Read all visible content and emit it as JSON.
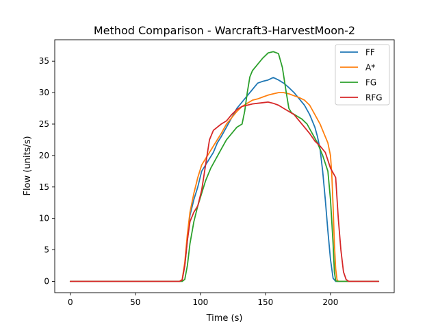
{
  "chart_data": {
    "type": "line",
    "title": "Method Comparison - Warcraft3-HarvestMoon-2",
    "xlabel": "Time (s)",
    "ylabel": "Flow (units/s)",
    "xlim": [
      -12,
      249
    ],
    "ylim": [
      -1.8,
      38.4
    ],
    "xticks": [
      0,
      50,
      100,
      150,
      200
    ],
    "yticks": [
      0,
      5,
      10,
      15,
      20,
      25,
      30,
      35
    ],
    "grid": false,
    "legend_position": "top-right",
    "series": [
      {
        "name": "FF",
        "color": "#1f77b4",
        "x": [
          0,
          84,
          86,
          88,
          90,
          92,
          95,
          98,
          101,
          104,
          107,
          110,
          113,
          116,
          120,
          124,
          128,
          132,
          136,
          140,
          144,
          148,
          152,
          156,
          160,
          164,
          168,
          172,
          176,
          180,
          184,
          188,
          190,
          192,
          194,
          196,
          198,
          200,
          202,
          204,
          206,
          210,
          220,
          237
        ],
        "y": [
          0,
          0,
          0.2,
          2.5,
          6.5,
          10.5,
          13,
          15,
          17.5,
          18.5,
          19.5,
          20.5,
          22,
          23,
          24.5,
          26,
          27.5,
          28.5,
          29.5,
          30.5,
          31.5,
          31.8,
          32,
          32.4,
          32,
          31.5,
          30.8,
          30,
          29,
          28,
          26.5,
          24.5,
          23,
          21,
          17.5,
          13,
          8,
          3.5,
          0.5,
          0,
          0,
          0,
          0,
          0
        ]
      },
      {
        "name": "A*",
        "color": "#ff7f0e",
        "x": [
          0,
          84,
          86,
          88,
          90,
          92,
          95,
          98,
          101,
          104,
          107,
          110,
          113,
          116,
          120,
          124,
          128,
          132,
          136,
          140,
          144,
          148,
          152,
          156,
          160,
          164,
          168,
          172,
          176,
          180,
          184,
          188,
          192,
          195,
          198,
          200,
          201,
          202,
          203,
          204,
          205,
          206,
          210,
          237
        ],
        "y": [
          0,
          0,
          0.3,
          3,
          7.5,
          11,
          14,
          16.5,
          18.5,
          19.5,
          20.5,
          21.5,
          22.5,
          23.5,
          25,
          26,
          27,
          27.8,
          28.3,
          28.8,
          29,
          29.3,
          29.6,
          29.8,
          30,
          30,
          29.8,
          29.5,
          29.2,
          28.8,
          28,
          26.5,
          25,
          23.5,
          22,
          20,
          17,
          12,
          6,
          2,
          0.3,
          0,
          0,
          0
        ]
      },
      {
        "name": "FG",
        "color": "#2ca02c",
        "x": [
          0,
          86,
          88,
          90,
          92,
          95,
          98,
          101,
          104,
          108,
          112,
          116,
          120,
          124,
          128,
          132,
          134,
          136,
          138,
          140,
          144,
          148,
          152,
          156,
          160,
          163,
          166,
          168,
          170,
          174,
          178,
          182,
          186,
          190,
          194,
          198,
          200,
          202,
          203,
          204,
          205,
          206,
          210,
          237
        ],
        "y": [
          0,
          0,
          0.3,
          2.5,
          6,
          9.5,
          12,
          14,
          16,
          18,
          19.5,
          21,
          22.5,
          23.5,
          24.5,
          25,
          27,
          30,
          32.5,
          33.5,
          34.5,
          35.5,
          36.3,
          36.5,
          36.2,
          34,
          30,
          27.5,
          26.8,
          26.3,
          25.8,
          25,
          23.5,
          22,
          20,
          17.5,
          13,
          6,
          1.5,
          0.1,
          0,
          0,
          0,
          0
        ]
      },
      {
        "name": "RFG",
        "color": "#d62728",
        "x": [
          0,
          84,
          86,
          88,
          90,
          92,
          95,
          98,
          101,
          104,
          107,
          110,
          113,
          116,
          120,
          124,
          128,
          132,
          136,
          140,
          144,
          148,
          152,
          156,
          160,
          164,
          168,
          172,
          176,
          180,
          184,
          188,
          192,
          196,
          200,
          204,
          206,
          208,
          210,
          212,
          214,
          216,
          220,
          237
        ],
        "y": [
          0,
          0,
          0.2,
          2.5,
          6.5,
          9.5,
          11,
          12,
          14.5,
          18.5,
          22.5,
          24,
          24.5,
          25,
          25.5,
          26.5,
          27.3,
          27.8,
          28,
          28.2,
          28.3,
          28.4,
          28.5,
          28.3,
          28,
          27.5,
          27,
          26.5,
          25.5,
          24.5,
          23.5,
          22.3,
          21.5,
          20.5,
          18,
          16.5,
          10,
          5,
          1.5,
          0.3,
          0,
          0,
          0,
          0
        ]
      }
    ]
  }
}
